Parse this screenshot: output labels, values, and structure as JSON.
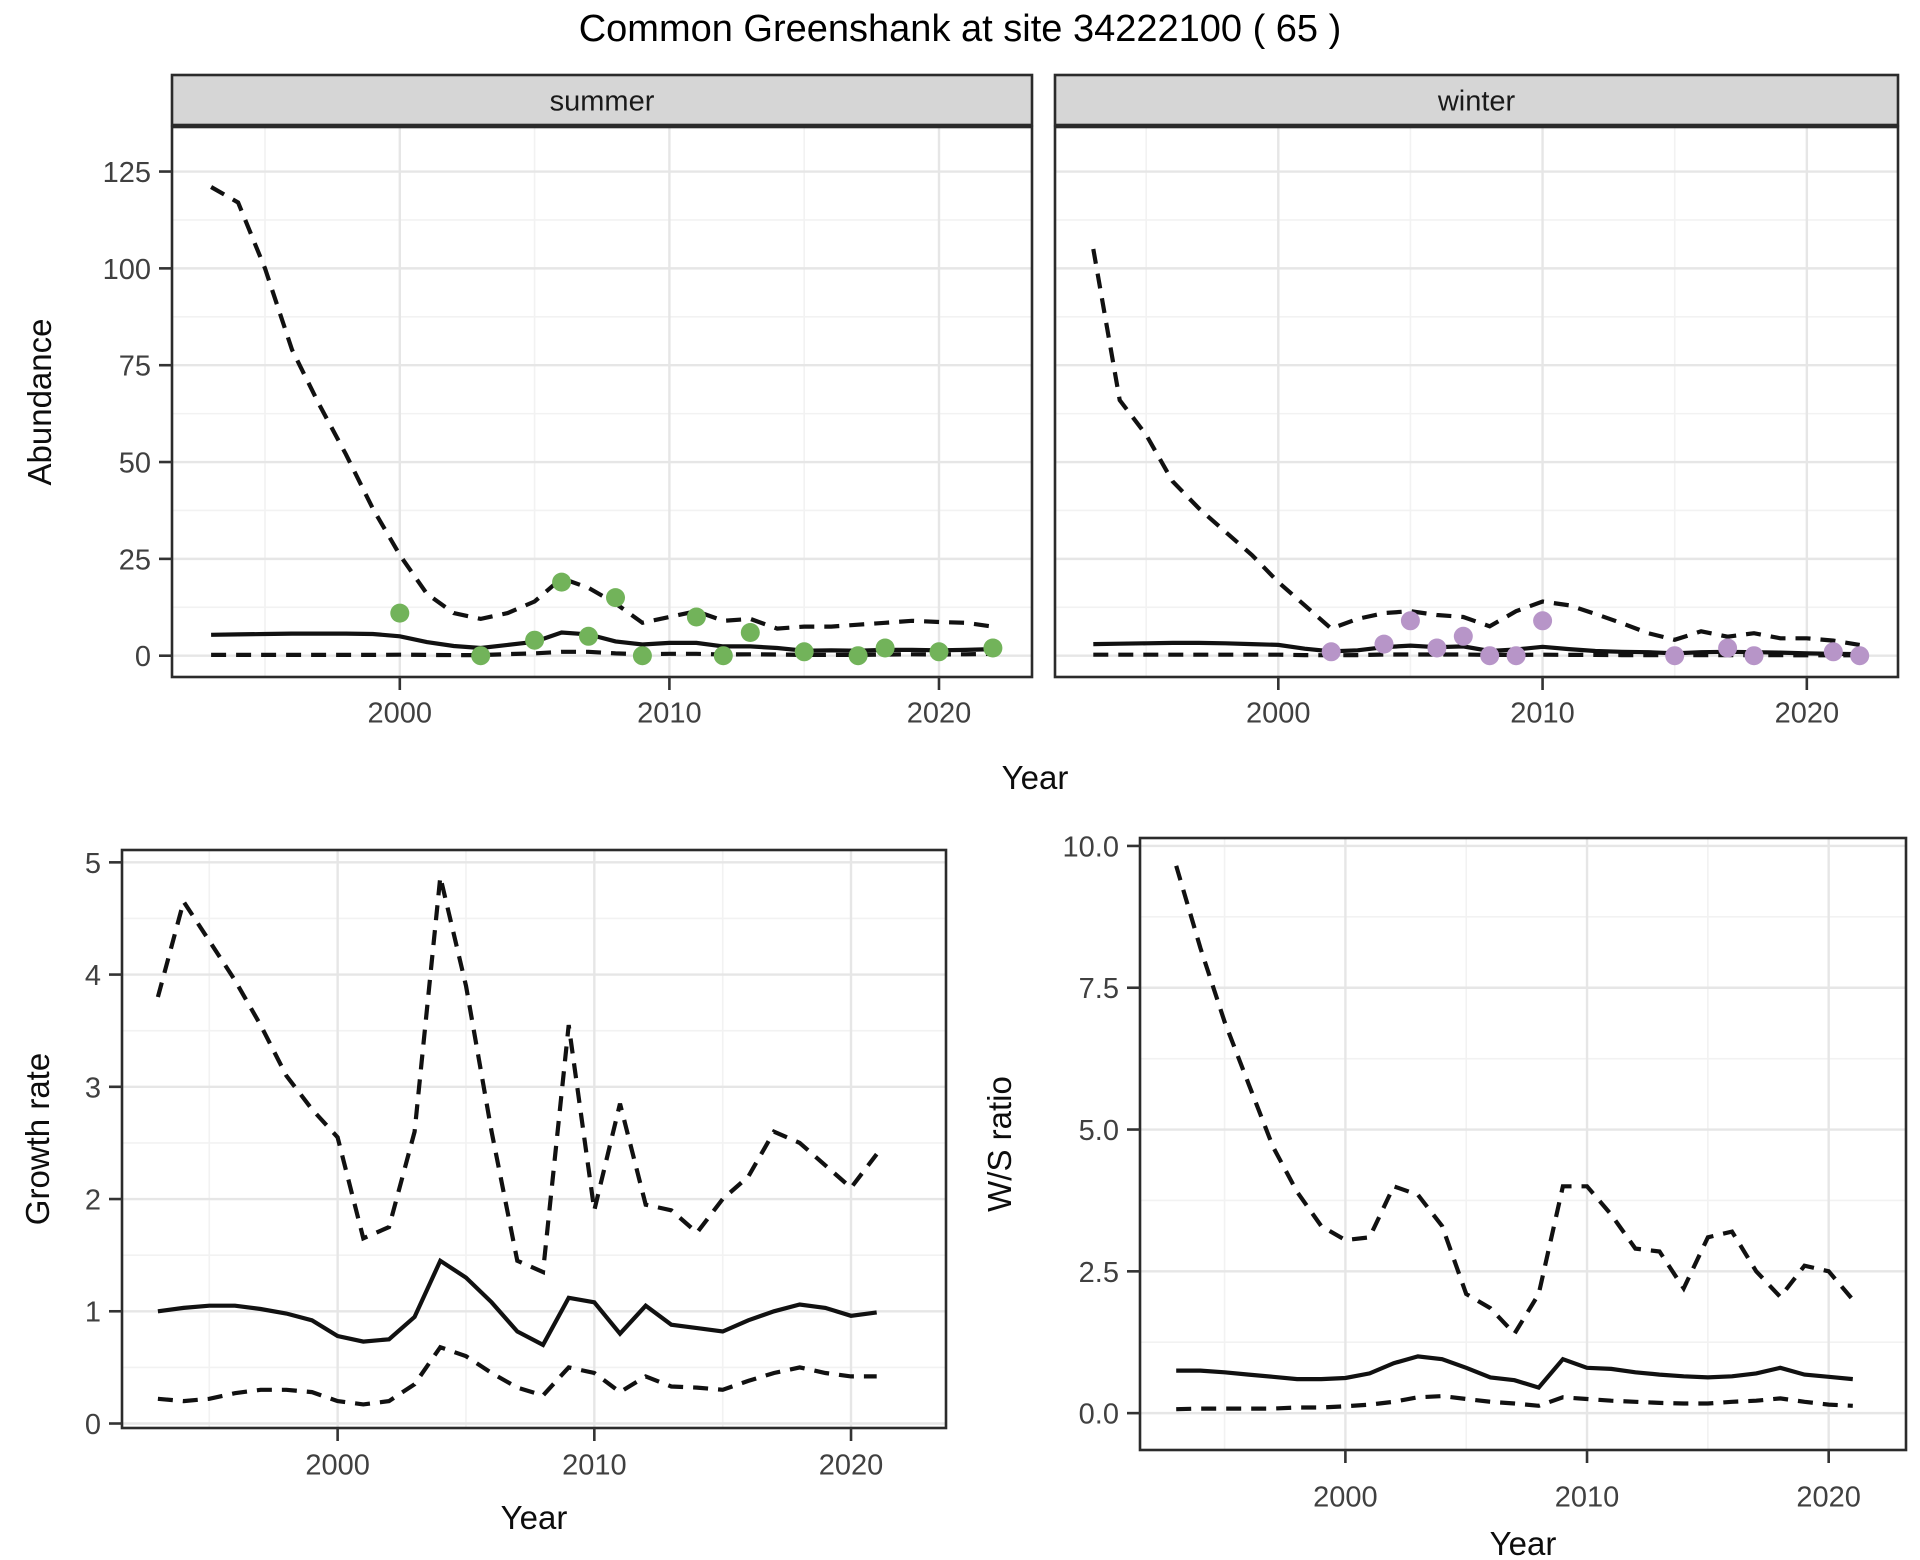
{
  "title": "Common Greenshank at site 34222100 ( 65 )",
  "colors": {
    "background": "#ffffff",
    "panel_bg": "#ffffff",
    "panel_border": "#2b2b2b",
    "grid_major": "#e6e6e6",
    "grid_minor": "#f2f2f2",
    "strip_fill": "#d6d6d6",
    "strip_border": "#2b2b2b",
    "line": "#111111",
    "tick_mark": "#333333",
    "tick_label": "#404040",
    "summer_point": "#72b35a",
    "winter_point": "#b795c8"
  },
  "chart_data": [
    {
      "id": "abundance-summer",
      "type": "line",
      "facet_label": "summer",
      "xlabel": "Year",
      "ylabel": "Abundance",
      "xlim": [
        1991.55,
        2023.45
      ],
      "ylim": [
        -5.5,
        136.5
      ],
      "x_major": [
        2000,
        2010,
        2020
      ],
      "x_minor": [
        1995,
        2005,
        2015
      ],
      "y_major": [
        0,
        25,
        50,
        75,
        100,
        125
      ],
      "y_minor": [
        12.5,
        37.5,
        62.5,
        87.5,
        112.5
      ],
      "x_tick_labels": [
        "2000",
        "2010",
        "2020"
      ],
      "y_tick_labels": [
        "0",
        "25",
        "50",
        "75",
        "100",
        "125"
      ],
      "years": [
        1993,
        1994,
        1995,
        1996,
        1997,
        1998,
        1999,
        2000,
        2001,
        2002,
        2003,
        2004,
        2005,
        2006,
        2007,
        2008,
        2009,
        2010,
        2011,
        2012,
        2013,
        2014,
        2015,
        2016,
        2017,
        2018,
        2019,
        2020,
        2021,
        2022
      ],
      "series": [
        {
          "name": "upper-95ci",
          "style": "dashed",
          "values": [
            121,
            117,
            100,
            79,
            65,
            52,
            38,
            26,
            16,
            11,
            9.5,
            11,
            14,
            20,
            17.5,
            13.5,
            8.5,
            10,
            11.5,
            9,
            9.5,
            7,
            7.5,
            7.5,
            8,
            8.5,
            9,
            8.7,
            8.5,
            7.5
          ]
        },
        {
          "name": "mean",
          "style": "solid",
          "values": [
            5.4,
            5.5,
            5.6,
            5.7,
            5.7,
            5.7,
            5.6,
            5.0,
            3.5,
            2.5,
            2.0,
            2.8,
            3.6,
            6.0,
            5.5,
            3.7,
            2.9,
            3.3,
            3.3,
            2.4,
            2.4,
            2.0,
            1.3,
            1.4,
            1.3,
            1.5,
            1.5,
            1.4,
            1.5,
            1.7
          ]
        },
        {
          "name": "lower-95ci",
          "style": "dashed",
          "values": [
            0.2,
            0.2,
            0.2,
            0.2,
            0.2,
            0.2,
            0.2,
            0.25,
            0.2,
            0.15,
            0.15,
            0.4,
            0.6,
            1.0,
            1.0,
            0.6,
            0.35,
            0.5,
            0.5,
            0.3,
            0.35,
            0.3,
            0.2,
            0.2,
            0.2,
            0.3,
            0.35,
            0.3,
            0.35,
            0.5
          ]
        }
      ],
      "points": {
        "name": "observed-count",
        "color": "#72b35a",
        "years": [
          2000,
          2003,
          2005,
          2006,
          2007,
          2008,
          2009,
          2011,
          2012,
          2013,
          2015,
          2017,
          2018,
          2020,
          2022
        ],
        "values": [
          11,
          0,
          4,
          19,
          5,
          15,
          0,
          10,
          0,
          6,
          1,
          0,
          2,
          1,
          2
        ]
      }
    },
    {
      "id": "abundance-winter",
      "type": "line",
      "facet_label": "winter",
      "xlabel": "",
      "ylabel": "",
      "xlim": [
        1991.55,
        2023.45
      ],
      "ylim": [
        -5.5,
        136.5
      ],
      "x_major": [
        2000,
        2010,
        2020
      ],
      "x_minor": [
        1995,
        2005,
        2015
      ],
      "y_major": [
        0,
        25,
        50,
        75,
        100,
        125
      ],
      "y_minor": [
        12.5,
        37.5,
        62.5,
        87.5,
        112.5
      ],
      "x_tick_labels": [
        "2000",
        "2010",
        "2020"
      ],
      "y_tick_labels": [],
      "years": [
        1993,
        1994,
        1995,
        1996,
        1997,
        1998,
        1999,
        2000,
        2001,
        2002,
        2003,
        2004,
        2005,
        2006,
        2007,
        2008,
        2009,
        2010,
        2011,
        2012,
        2013,
        2014,
        2015,
        2016,
        2017,
        2018,
        2019,
        2020,
        2021,
        2022
      ],
      "series": [
        {
          "name": "upper-95ci",
          "style": "dashed",
          "values": [
            105,
            66,
            57,
            45,
            38,
            32,
            26,
            19,
            13,
            7,
            9.5,
            11,
            11.5,
            10.5,
            10,
            7.6,
            11.5,
            14,
            13,
            10.8,
            8.4,
            5.8,
            4.1,
            6.3,
            4.9,
            5.8,
            4.5,
            4.5,
            3.9,
            2.8
          ]
        },
        {
          "name": "mean",
          "style": "solid",
          "values": [
            3.0,
            3.1,
            3.2,
            3.3,
            3.3,
            3.2,
            3.0,
            2.8,
            1.8,
            1.1,
            1.4,
            2.2,
            2.6,
            2.2,
            2.4,
            1.2,
            1.6,
            2.3,
            1.7,
            1.2,
            1.0,
            0.9,
            0.6,
            0.9,
            1.0,
            0.9,
            0.8,
            0.6,
            0.5,
            0.4
          ]
        },
        {
          "name": "lower-95ci",
          "style": "dashed",
          "values": [
            0.25,
            0.25,
            0.25,
            0.25,
            0.25,
            0.25,
            0.25,
            0.25,
            0.15,
            0.1,
            0.15,
            0.3,
            0.3,
            0.3,
            0.3,
            0.2,
            0.2,
            0.25,
            0.2,
            0.2,
            0.15,
            0.15,
            0.1,
            0.15,
            0.15,
            0.15,
            0.12,
            0.1,
            0.1,
            0.1
          ]
        }
      ],
      "points": {
        "name": "observed-count",
        "color": "#b795c8",
        "years": [
          2002,
          2004,
          2005,
          2006,
          2007,
          2008,
          2009,
          2010,
          2015,
          2017,
          2018,
          2021,
          2022
        ],
        "values": [
          1,
          3,
          9,
          2,
          5,
          0,
          0,
          9,
          0,
          2,
          0,
          1,
          0
        ]
      }
    },
    {
      "id": "growth-rate",
      "type": "line",
      "facet_label": "",
      "xlabel": "Year",
      "ylabel": "Growth rate",
      "xlim": [
        1991.6,
        2023.7
      ],
      "ylim": [
        -0.04,
        5.11
      ],
      "x_major": [
        2000,
        2010,
        2020
      ],
      "x_minor": [
        1995,
        2005,
        2015
      ],
      "y_major": [
        0,
        1,
        2,
        3,
        4,
        5
      ],
      "y_minor": [
        0.5,
        1.5,
        2.5,
        3.5,
        4.5
      ],
      "x_tick_labels": [
        "2000",
        "2010",
        "2020"
      ],
      "y_tick_labels": [
        "0",
        "1",
        "2",
        "3",
        "4",
        "5"
      ],
      "years": [
        1993,
        1994,
        1995,
        1996,
        1997,
        1998,
        1999,
        2000,
        2001,
        2002,
        2003,
        2004,
        2005,
        2006,
        2007,
        2008,
        2009,
        2010,
        2011,
        2012,
        2013,
        2014,
        2015,
        2016,
        2017,
        2018,
        2019,
        2020,
        2021
      ],
      "series": [
        {
          "name": "upper-95ci",
          "style": "dashed",
          "values": [
            3.8,
            4.65,
            4.3,
            3.95,
            3.55,
            3.1,
            2.8,
            2.55,
            1.65,
            1.75,
            2.6,
            4.87,
            3.9,
            2.6,
            1.45,
            1.35,
            3.55,
            1.9,
            2.85,
            1.95,
            1.9,
            1.7,
            2.0,
            2.2,
            2.6,
            2.5,
            2.3,
            2.1,
            2.4
          ]
        },
        {
          "name": "mean",
          "style": "solid",
          "values": [
            1.0,
            1.03,
            1.05,
            1.05,
            1.02,
            0.98,
            0.92,
            0.78,
            0.73,
            0.75,
            0.95,
            1.45,
            1.3,
            1.08,
            0.82,
            0.7,
            1.12,
            1.08,
            0.8,
            1.05,
            0.88,
            0.85,
            0.82,
            0.92,
            1.0,
            1.06,
            1.03,
            0.96,
            0.99
          ]
        },
        {
          "name": "lower-95ci",
          "style": "dashed",
          "values": [
            0.22,
            0.2,
            0.22,
            0.27,
            0.3,
            0.3,
            0.28,
            0.2,
            0.17,
            0.2,
            0.35,
            0.68,
            0.6,
            0.45,
            0.32,
            0.25,
            0.5,
            0.45,
            0.28,
            0.42,
            0.33,
            0.32,
            0.3,
            0.38,
            0.45,
            0.5,
            0.45,
            0.42,
            0.42
          ]
        }
      ]
    },
    {
      "id": "ws-ratio",
      "type": "line",
      "facet_label": "",
      "xlabel": "Year",
      "ylabel": "W/S ratio",
      "xlim": [
        1991.5,
        2023.2
      ],
      "ylim": [
        -0.65,
        10.14
      ],
      "x_major": [
        2000,
        2010,
        2020
      ],
      "x_minor": [
        1995,
        2005,
        2015
      ],
      "y_major": [
        0,
        2.5,
        5,
        7.5,
        10
      ],
      "y_minor": [
        1.25,
        3.75,
        6.25,
        8.75
      ],
      "x_tick_labels": [
        "2000",
        "2010",
        "2020"
      ],
      "y_tick_labels": [
        "0.0",
        "2.5",
        "5.0",
        "7.5",
        "10.0"
      ],
      "years": [
        1993,
        1994,
        1995,
        1996,
        1997,
        1998,
        1999,
        2000,
        2001,
        2002,
        2003,
        2004,
        2005,
        2006,
        2007,
        2008,
        2009,
        2010,
        2011,
        2012,
        2013,
        2014,
        2015,
        2016,
        2017,
        2018,
        2019,
        2020,
        2021
      ],
      "series": [
        {
          "name": "upper-95ci",
          "style": "dashed",
          "values": [
            9.65,
            8.2,
            6.9,
            5.8,
            4.7,
            3.9,
            3.3,
            3.05,
            3.1,
            4.0,
            3.85,
            3.3,
            2.1,
            1.85,
            1.4,
            2.1,
            4.0,
            4.0,
            3.5,
            2.9,
            2.85,
            2.2,
            3.1,
            3.2,
            2.5,
            2.05,
            2.6,
            2.5,
            2.0
          ]
        },
        {
          "name": "mean",
          "style": "solid",
          "values": [
            0.75,
            0.75,
            0.72,
            0.68,
            0.64,
            0.6,
            0.6,
            0.62,
            0.7,
            0.88,
            1.0,
            0.95,
            0.8,
            0.63,
            0.58,
            0.45,
            0.95,
            0.8,
            0.78,
            0.72,
            0.68,
            0.65,
            0.63,
            0.65,
            0.7,
            0.8,
            0.68,
            0.64,
            0.6
          ]
        },
        {
          "name": "lower-95ci",
          "style": "dashed",
          "values": [
            0.07,
            0.08,
            0.08,
            0.08,
            0.08,
            0.1,
            0.1,
            0.12,
            0.15,
            0.2,
            0.28,
            0.3,
            0.25,
            0.2,
            0.17,
            0.13,
            0.28,
            0.25,
            0.22,
            0.2,
            0.18,
            0.17,
            0.17,
            0.2,
            0.22,
            0.26,
            0.2,
            0.15,
            0.13
          ]
        }
      ]
    }
  ]
}
